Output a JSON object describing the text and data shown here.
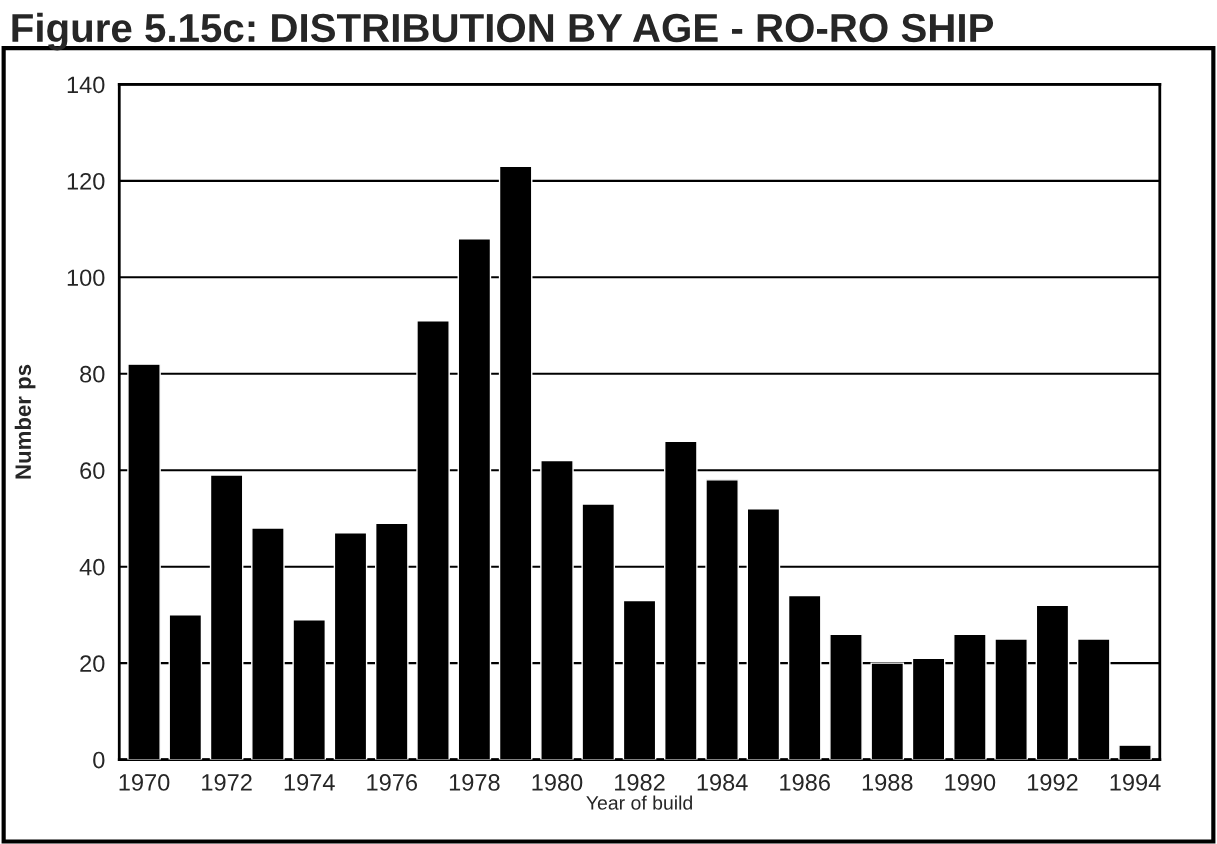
{
  "chart_data": {
    "type": "bar",
    "title": "Figure 5.15c: DISTRIBUTION BY AGE - RO-RO SHIP",
    "xlabel": "Year of build",
    "ylabel": "Number ps",
    "categories": [
      "1970",
      null,
      "1972",
      null,
      "1974",
      null,
      "1976",
      null,
      "1978",
      null,
      "1980",
      null,
      "1982",
      null,
      "1984",
      null,
      "1986",
      null,
      "1988",
      null,
      "1990",
      null,
      "1992",
      null,
      "1994"
    ],
    "values": [
      82,
      30,
      59,
      48,
      29,
      47,
      49,
      91,
      108,
      123,
      62,
      53,
      33,
      66,
      58,
      52,
      34,
      26,
      20,
      21,
      26,
      25,
      32,
      25,
      3
    ],
    "color": "#000000",
    "ylim": [
      0,
      140
    ],
    "yticks": [
      0,
      20,
      40,
      60,
      80,
      100,
      120,
      140
    ],
    "grid": "y"
  }
}
